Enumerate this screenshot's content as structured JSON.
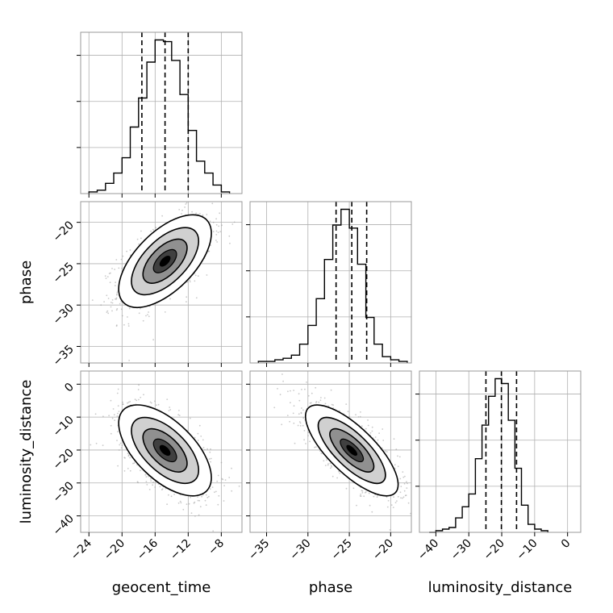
{
  "chart_data": {
    "type": "corner",
    "parameters": [
      "geocent_time",
      "phase",
      "luminosity_distance"
    ],
    "axis_labels": {
      "x": [
        "geocent_time",
        "phase",
        "luminosity_distance"
      ],
      "y": [
        "phase",
        "luminosity_distance"
      ]
    },
    "ranges": {
      "geocent_time": [
        -25,
        -5.5
      ],
      "phase": [
        -37,
        -17.5
      ],
      "luminosity_distance": [
        -45,
        4
      ]
    },
    "ticks": {
      "geocent_time": [
        -24,
        -20,
        -16,
        -12,
        -8
      ],
      "phase": [
        -35,
        -30,
        -25,
        -20
      ],
      "luminosity_distance": [
        -40,
        -30,
        -20,
        -10,
        0
      ]
    },
    "tick_labels": {
      "geocent_time": [
        "−24",
        "−20",
        "−16",
        "−12",
        "−8"
      ],
      "phase": [
        "−35",
        "−30",
        "−25",
        "−20"
      ],
      "luminosity_distance": [
        "−40",
        "−30",
        "−20",
        "−10",
        "0"
      ]
    },
    "quantiles": {
      "geocent_time": [
        -17.6,
        -14.8,
        -12.0
      ],
      "phase": [
        -26.6,
        -24.7,
        -22.9
      ],
      "luminosity_distance": [
        -24.8,
        -20.1,
        -15.5
      ]
    },
    "histograms": {
      "geocent_time": {
        "edges": [
          -24,
          -23,
          -22,
          -21,
          -20,
          -19,
          -18,
          -17,
          -16,
          -15,
          -14,
          -13,
          -12,
          -11,
          -10,
          -9,
          -8,
          -7
        ],
        "counts": [
          1,
          2,
          6,
          12,
          21,
          39,
          56,
          77,
          90,
          89,
          78,
          58,
          37,
          19,
          12,
          5,
          1
        ]
      },
      "phase": {
        "edges": [
          -36,
          -35,
          -34,
          -33,
          -32,
          -31,
          -30,
          -29,
          -28,
          -27,
          -26,
          -25,
          -24,
          -23,
          -22,
          -21,
          -20,
          -19,
          -18
        ],
        "counts": [
          1,
          1,
          2,
          3,
          5,
          12,
          24,
          41,
          66,
          88,
          98,
          86,
          63,
          29,
          12,
          4,
          2,
          1
        ]
      },
      "luminosity_distance": {
        "edges": [
          -42,
          -40,
          -38,
          -36,
          -34,
          -32,
          -30,
          -28,
          -26,
          -24,
          -22,
          -20,
          -18,
          -16,
          -14,
          -12,
          -10,
          -8,
          -6
        ],
        "counts": [
          0,
          1,
          2,
          3,
          9,
          16,
          24,
          46,
          67,
          85,
          96,
          93,
          70,
          40,
          17,
          5,
          2,
          1
        ]
      }
    },
    "correlations": [
      {
        "x": "geocent_time",
        "y": "phase",
        "mean": [
          -14.8,
          -24.7
        ],
        "sd": [
          2.8,
          2.8
        ],
        "rho": 0.6
      },
      {
        "x": "geocent_time",
        "y": "luminosity_distance",
        "mean": [
          -14.8,
          -20.1
        ],
        "sd": [
          2.8,
          6.9
        ],
        "rho": -0.6
      },
      {
        "x": "phase",
        "y": "luminosity_distance",
        "mean": [
          -24.7,
          -20.1
        ],
        "sd": [
          2.8,
          6.9
        ],
        "rho": -0.75
      }
    ],
    "grid": true,
    "colors": {
      "line": "#000000",
      "points": "#9e9e9e",
      "grid": "#b0b0b0",
      "frame": "#999999"
    }
  }
}
